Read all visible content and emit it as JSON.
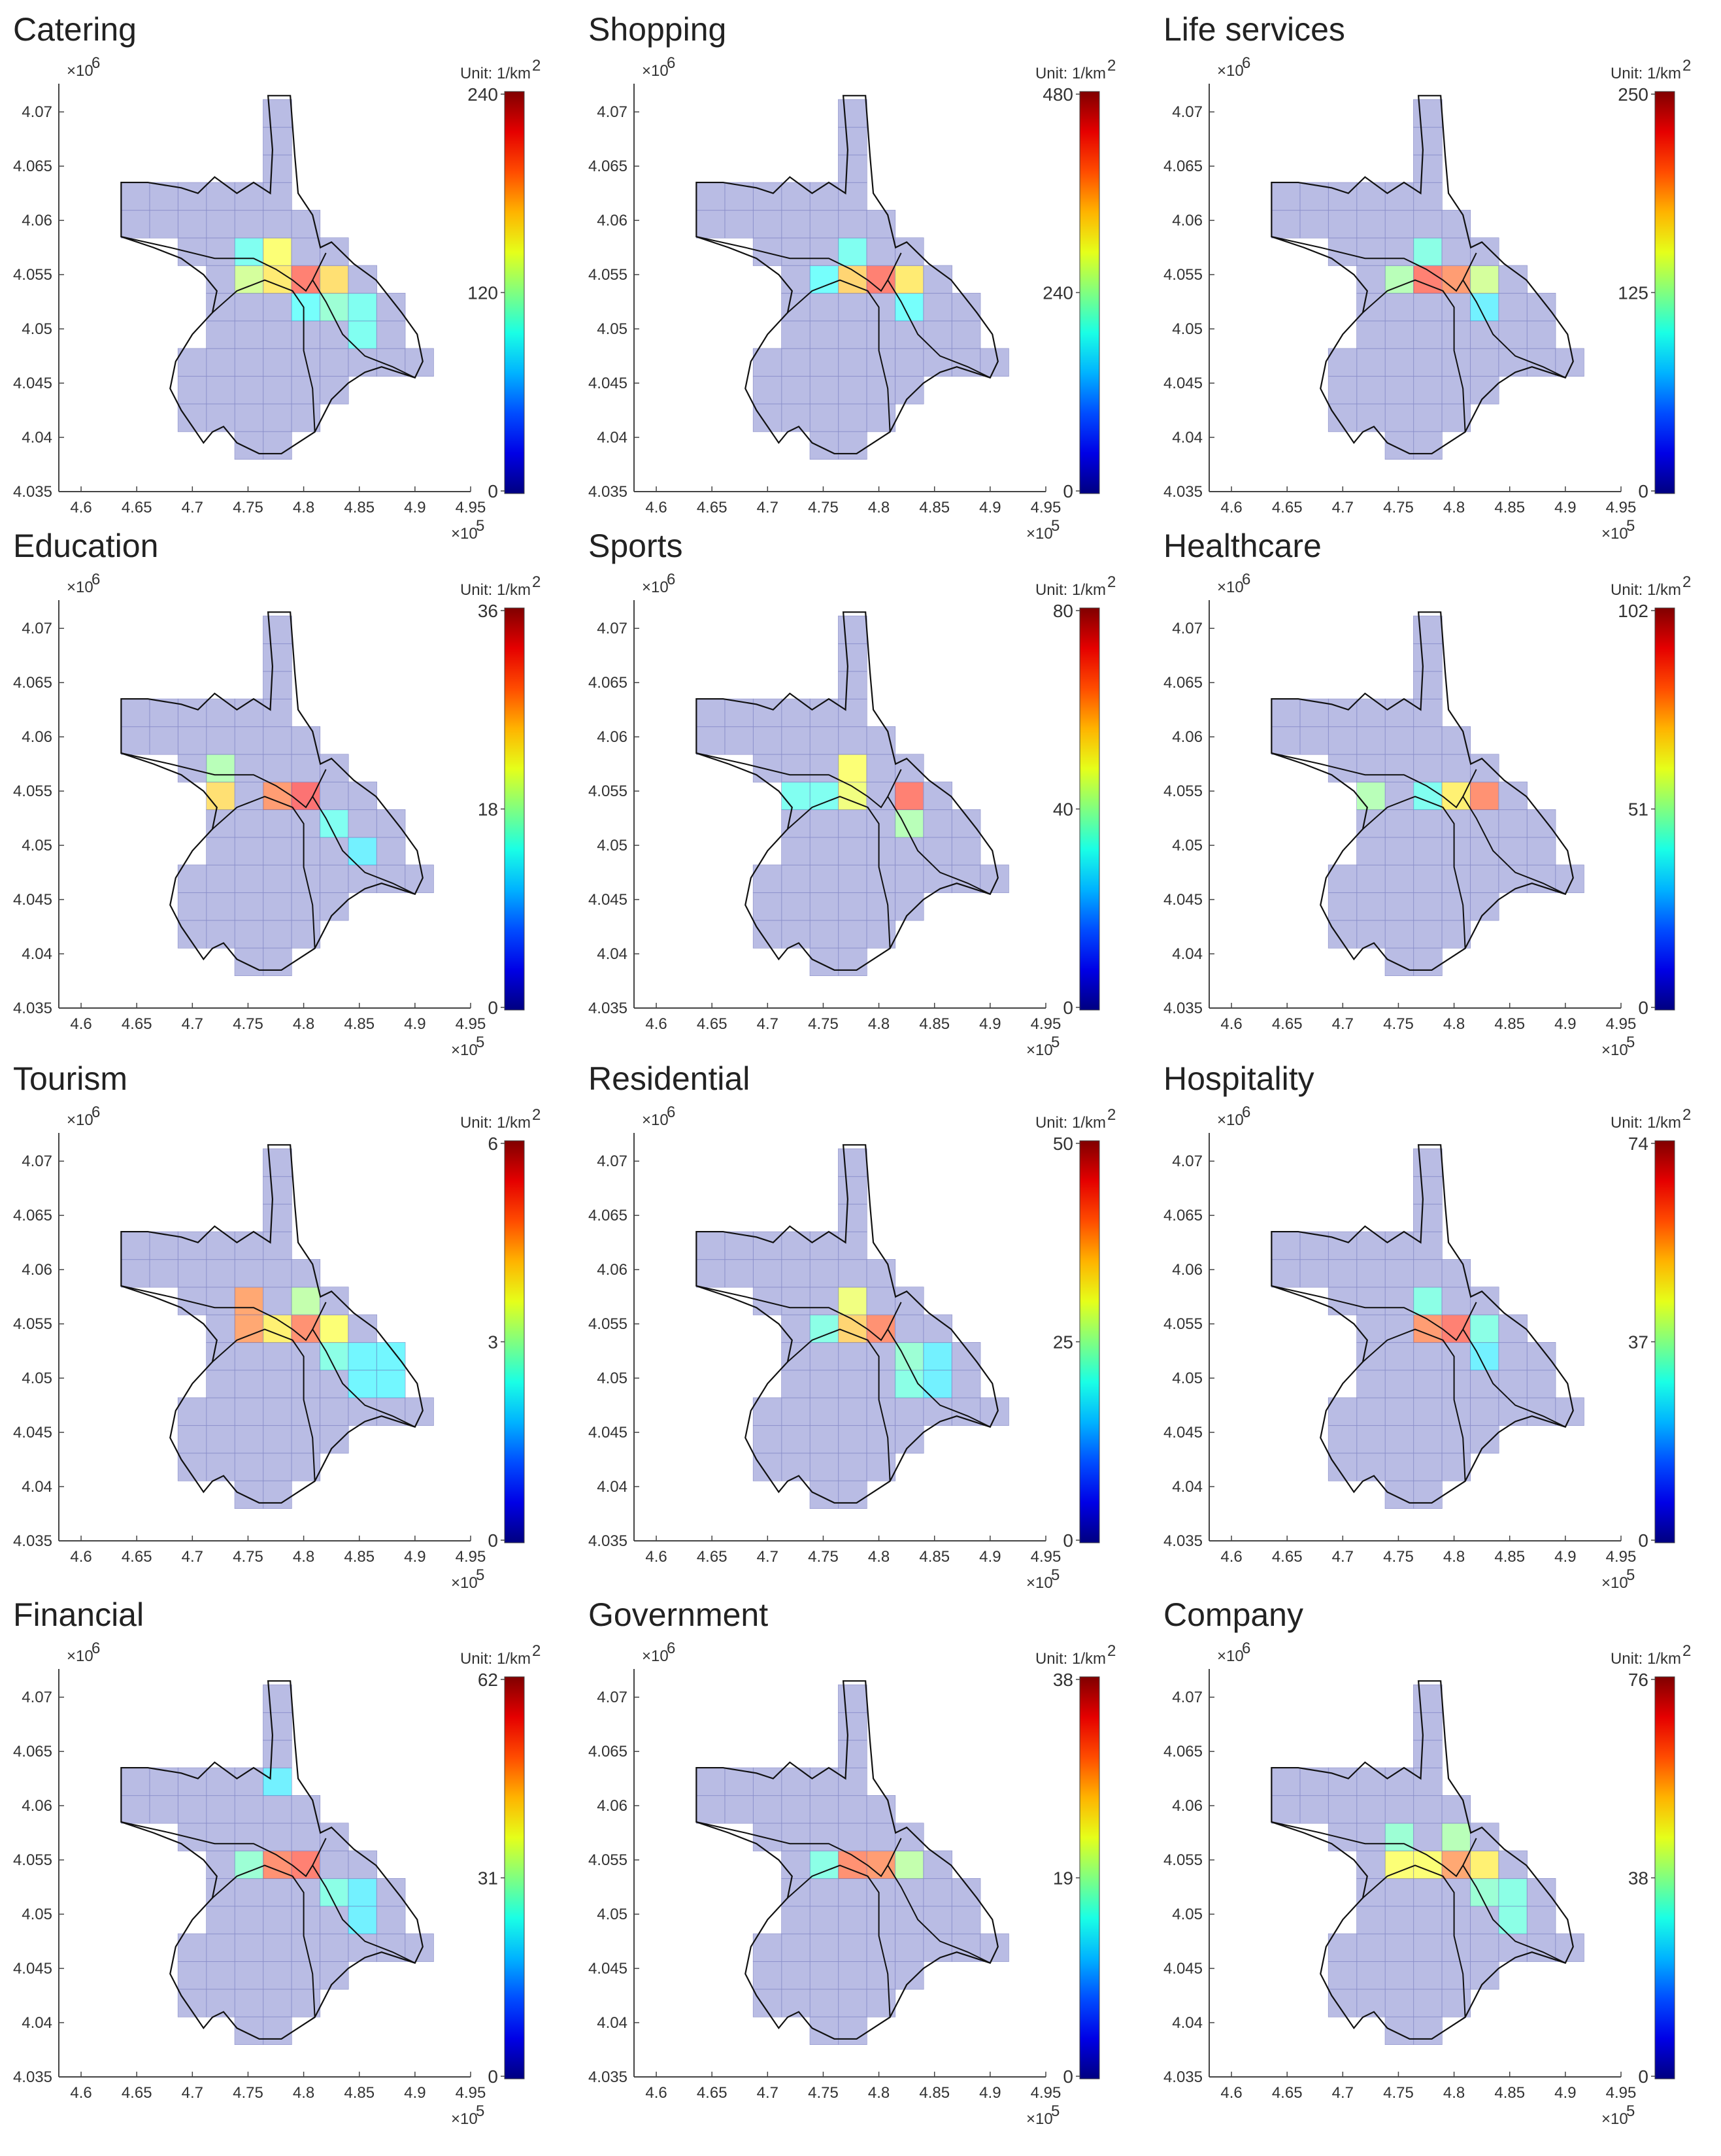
{
  "map_axes": {
    "x_ticks": [
      "4.6",
      "4.65",
      "4.7",
      "4.75",
      "4.8",
      "4.85",
      "4.9",
      "4.95"
    ],
    "y_ticks": [
      "4.07",
      "4.065",
      "4.06",
      "4.055",
      "4.05",
      "4.045",
      "4.04",
      "4.035"
    ],
    "x_exponent": "×10",
    "x_exponent_power": "5",
    "y_exponent": "×10",
    "y_exponent_power": "6",
    "unit_label": "Unit: 1/km",
    "unit_power": "2"
  },
  "colors": {
    "low": "#00008f",
    "mid": "#00ffff",
    "high": "#ff0000",
    "region_fill": "#9b9fd8",
    "boundary": "#111111"
  },
  "panels": [
    {
      "title": "Catering",
      "max": "240",
      "mid": "120",
      "min": "0",
      "hotspots": [
        {
          "x": 4.778,
          "y": 4.0565,
          "v": 0.62
        },
        {
          "x": 4.803,
          "y": 4.054,
          "v": 0.85
        },
        {
          "x": 4.829,
          "y": 4.054,
          "v": 0.68
        },
        {
          "x": 4.752,
          "y": 4.0555,
          "v": 0.55
        },
        {
          "x": 4.778,
          "y": 4.0555,
          "v": 0.66
        },
        {
          "x": 4.829,
          "y": 4.0515,
          "v": 0.45
        },
        {
          "x": 4.752,
          "y": 4.0565,
          "v": 0.4
        },
        {
          "x": 4.803,
          "y": 4.0515,
          "v": 0.38
        },
        {
          "x": 4.855,
          "y": 4.0505,
          "v": 0.4
        }
      ]
    },
    {
      "title": "Shopping",
      "max": "480",
      "mid": "240",
      "min": "0",
      "hotspots": [
        {
          "x": 4.778,
          "y": 4.0555,
          "v": 0.7
        },
        {
          "x": 4.803,
          "y": 4.054,
          "v": 0.85
        },
        {
          "x": 4.829,
          "y": 4.054,
          "v": 0.66
        },
        {
          "x": 4.803,
          "y": 4.0555,
          "v": 0.66
        },
        {
          "x": 4.778,
          "y": 4.058,
          "v": 0.4
        },
        {
          "x": 4.752,
          "y": 4.0555,
          "v": 0.38
        },
        {
          "x": 4.829,
          "y": 4.0515,
          "v": 0.38
        }
      ]
    },
    {
      "title": "Life services",
      "max": "250",
      "mid": "125",
      "min": "0",
      "hotspots": [
        {
          "x": 4.778,
          "y": 4.0555,
          "v": 0.85
        },
        {
          "x": 4.803,
          "y": 4.054,
          "v": 0.8
        },
        {
          "x": 4.829,
          "y": 4.054,
          "v": 0.55
        },
        {
          "x": 4.752,
          "y": 4.0555,
          "v": 0.5
        },
        {
          "x": 4.778,
          "y": 4.058,
          "v": 0.42
        },
        {
          "x": 4.803,
          "y": 4.0555,
          "v": 0.4
        },
        {
          "x": 4.829,
          "y": 4.0515,
          "v": 0.35
        }
      ]
    },
    {
      "title": "Education",
      "max": "36",
      "mid": "18",
      "min": "0",
      "hotspots": [
        {
          "x": 4.803,
          "y": 4.0545,
          "v": 0.88
        },
        {
          "x": 4.778,
          "y": 4.0555,
          "v": 0.8
        },
        {
          "x": 4.726,
          "y": 4.0555,
          "v": 0.68
        },
        {
          "x": 4.726,
          "y": 4.058,
          "v": 0.5
        },
        {
          "x": 4.829,
          "y": 4.0515,
          "v": 0.4
        },
        {
          "x": 4.855,
          "y": 4.049,
          "v": 0.35
        }
      ]
    },
    {
      "title": "Sports",
      "max": "80",
      "mid": "40",
      "min": "0",
      "hotspots": [
        {
          "x": 4.829,
          "y": 4.054,
          "v": 0.85
        },
        {
          "x": 4.778,
          "y": 4.058,
          "v": 0.62
        },
        {
          "x": 4.778,
          "y": 4.0555,
          "v": 0.6
        },
        {
          "x": 4.829,
          "y": 4.0515,
          "v": 0.5
        },
        {
          "x": 4.752,
          "y": 4.0555,
          "v": 0.4
        },
        {
          "x": 4.726,
          "y": 4.0555,
          "v": 0.4
        }
      ]
    },
    {
      "title": "Healthcare",
      "max": "102",
      "mid": "51",
      "min": "0",
      "hotspots": [
        {
          "x": 4.829,
          "y": 4.054,
          "v": 0.82
        },
        {
          "x": 4.803,
          "y": 4.054,
          "v": 0.65
        },
        {
          "x": 4.726,
          "y": 4.0555,
          "v": 0.5
        },
        {
          "x": 4.778,
          "y": 4.0555,
          "v": 0.4
        },
        {
          "x": 4.803,
          "y": 4.0555,
          "v": 0.4
        }
      ]
    },
    {
      "title": "Tourism",
      "max": "6",
      "mid": "3",
      "min": "0",
      "hotspots": [
        {
          "x": 4.803,
          "y": 4.0545,
          "v": 0.82
        },
        {
          "x": 4.778,
          "y": 4.0555,
          "v": 0.65
        },
        {
          "x": 4.752,
          "y": 4.056,
          "v": 0.78
        },
        {
          "x": 4.829,
          "y": 4.0545,
          "v": 0.62
        },
        {
          "x": 4.803,
          "y": 4.058,
          "v": 0.52
        },
        {
          "x": 4.829,
          "y": 4.052,
          "v": 0.42
        },
        {
          "x": 4.855,
          "y": 4.0505,
          "v": 0.36
        },
        {
          "x": 4.88,
          "y": 4.0505,
          "v": 0.36
        }
      ]
    },
    {
      "title": "Residential",
      "max": "50",
      "mid": "25",
      "min": "0",
      "hotspots": [
        {
          "x": 4.803,
          "y": 4.054,
          "v": 0.82
        },
        {
          "x": 4.778,
          "y": 4.0555,
          "v": 0.7
        },
        {
          "x": 4.778,
          "y": 4.058,
          "v": 0.6
        },
        {
          "x": 4.829,
          "y": 4.0525,
          "v": 0.45
        },
        {
          "x": 4.752,
          "y": 4.0555,
          "v": 0.42
        },
        {
          "x": 4.829,
          "y": 4.0505,
          "v": 0.42
        },
        {
          "x": 4.855,
          "y": 4.0505,
          "v": 0.35
        }
      ]
    },
    {
      "title": "Hospitality",
      "max": "74",
      "mid": "37",
      "min": "0",
      "hotspots": [
        {
          "x": 4.803,
          "y": 4.054,
          "v": 0.85
        },
        {
          "x": 4.778,
          "y": 4.0555,
          "v": 0.8
        },
        {
          "x": 4.778,
          "y": 4.058,
          "v": 0.42
        },
        {
          "x": 4.829,
          "y": 4.054,
          "v": 0.42
        },
        {
          "x": 4.803,
          "y": 4.0555,
          "v": 0.4
        },
        {
          "x": 4.829,
          "y": 4.0515,
          "v": 0.35
        }
      ]
    },
    {
      "title": "Financial",
      "max": "62",
      "mid": "31",
      "min": "0",
      "hotspots": [
        {
          "x": 4.778,
          "y": 4.0555,
          "v": 0.82
        },
        {
          "x": 4.803,
          "y": 4.054,
          "v": 0.85
        },
        {
          "x": 4.752,
          "y": 4.0555,
          "v": 0.45
        },
        {
          "x": 4.829,
          "y": 4.0525,
          "v": 0.42
        },
        {
          "x": 4.855,
          "y": 4.0505,
          "v": 0.35
        },
        {
          "x": 4.778,
          "y": 4.063,
          "v": 0.35
        }
      ]
    },
    {
      "title": "Government",
      "max": "38",
      "mid": "19",
      "min": "0",
      "hotspots": [
        {
          "x": 4.778,
          "y": 4.0555,
          "v": 0.82
        },
        {
          "x": 4.803,
          "y": 4.054,
          "v": 0.8
        },
        {
          "x": 4.829,
          "y": 4.054,
          "v": 0.52
        },
        {
          "x": 4.752,
          "y": 4.0555,
          "v": 0.42
        },
        {
          "x": 4.803,
          "y": 4.0555,
          "v": 0.42
        }
      ]
    },
    {
      "title": "Company",
      "max": "76",
      "mid": "38",
      "min": "0",
      "hotspots": [
        {
          "x": 4.803,
          "y": 4.0555,
          "v": 0.78
        },
        {
          "x": 4.829,
          "y": 4.054,
          "v": 0.65
        },
        {
          "x": 4.778,
          "y": 4.0555,
          "v": 0.62
        },
        {
          "x": 4.752,
          "y": 4.0555,
          "v": 0.62
        },
        {
          "x": 4.803,
          "y": 4.058,
          "v": 0.5
        },
        {
          "x": 4.829,
          "y": 4.0515,
          "v": 0.45
        },
        {
          "x": 4.855,
          "y": 4.0505,
          "v": 0.42
        },
        {
          "x": 4.752,
          "y": 4.058,
          "v": 0.45
        }
      ]
    }
  ]
}
